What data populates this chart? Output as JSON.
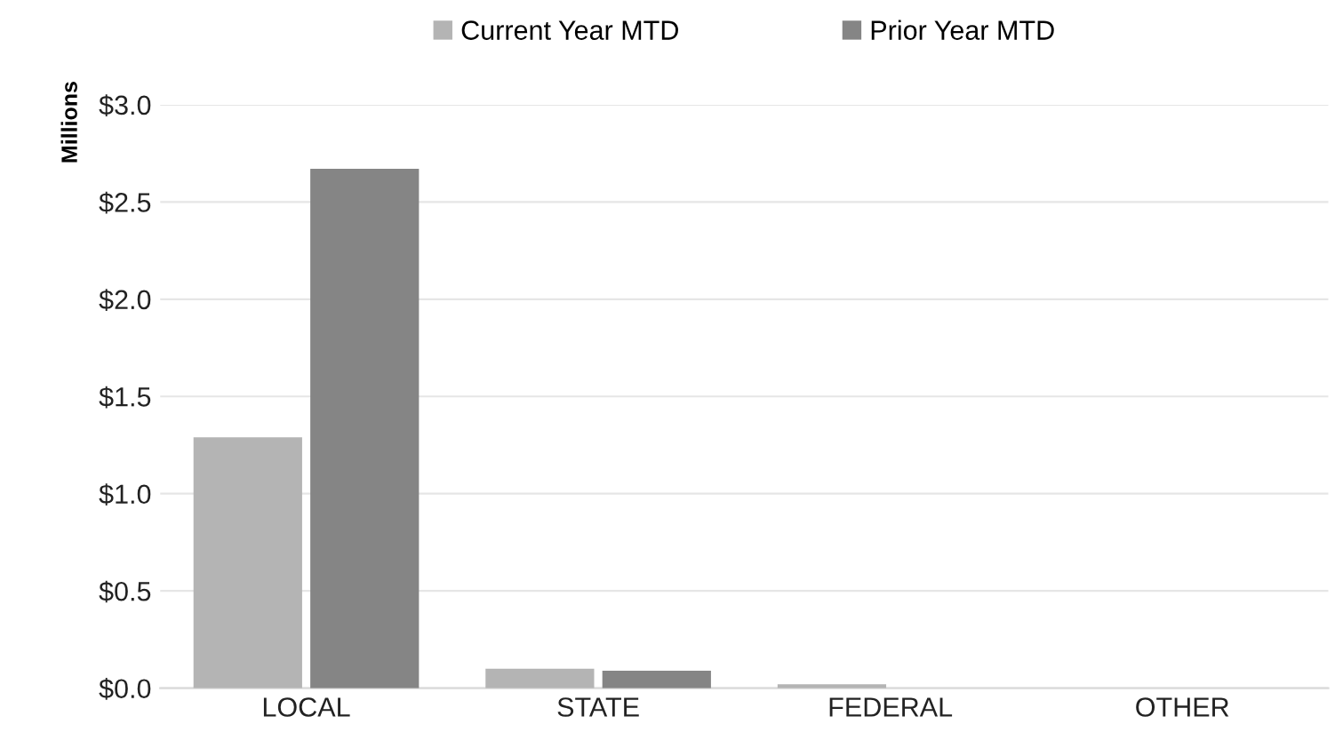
{
  "chart_data": {
    "type": "bar",
    "ylabel": "Millions",
    "categories": [
      "LOCAL",
      "STATE",
      "FEDERAL",
      "OTHER"
    ],
    "series": [
      {
        "name": "Current Year MTD",
        "color": "#b4b4b4",
        "values": [
          1.29,
          0.1,
          0.02,
          0
        ]
      },
      {
        "name": "Prior Year MTD",
        "color": "#858585",
        "values": [
          2.67,
          0.09,
          0,
          0
        ]
      }
    ],
    "ylim": [
      0,
      3.0
    ],
    "yticks": [
      {
        "value": 0,
        "label": "$0.0"
      },
      {
        "value": 0.5,
        "label": "$0.5"
      },
      {
        "value": 1.0,
        "label": "$1.0"
      },
      {
        "value": 1.5,
        "label": "$1.5"
      },
      {
        "value": 2.0,
        "label": "$2.0"
      },
      {
        "value": 2.5,
        "label": "$2.5"
      },
      {
        "value": 3.0,
        "label": "$3.0"
      }
    ],
    "grid": "y",
    "legend": "top"
  }
}
